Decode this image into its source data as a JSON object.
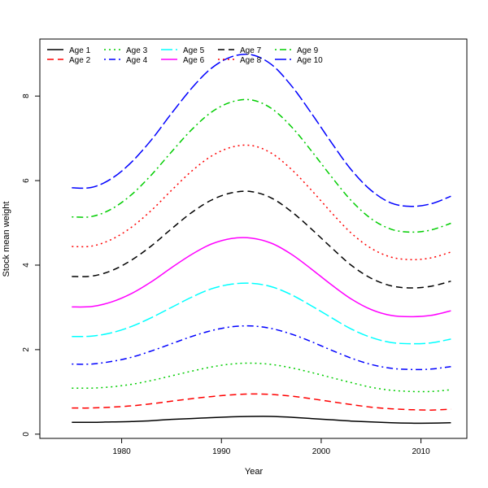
{
  "chart_data": {
    "type": "line",
    "title": "",
    "xlabel": "Year",
    "ylabel": "Stock mean weight",
    "xlim": [
      1971.8,
      2014.6
    ],
    "ylim": [
      -0.1,
      9.35
    ],
    "xticks": [
      1980,
      1990,
      2000,
      2010
    ],
    "yticks": [
      0,
      2,
      4,
      6,
      8
    ],
    "grid": false,
    "legend_position": "top-left",
    "x": [
      1975,
      1977,
      1979,
      1981,
      1983,
      1985,
      1987,
      1989,
      1991,
      1993,
      1995,
      1997,
      1999,
      2001,
      2003,
      2005,
      2007,
      2009,
      2011,
      2013
    ],
    "series": [
      {
        "name": "Age 1",
        "color": "#000000",
        "dash": "solid",
        "values": [
          0.28,
          0.28,
          0.29,
          0.3,
          0.32,
          0.35,
          0.37,
          0.39,
          0.41,
          0.42,
          0.42,
          0.4,
          0.37,
          0.34,
          0.31,
          0.29,
          0.27,
          0.26,
          0.26,
          0.27
        ]
      },
      {
        "name": "Age 2",
        "color": "#ff0000",
        "dash": "dashed",
        "values": [
          0.62,
          0.62,
          0.64,
          0.67,
          0.72,
          0.78,
          0.84,
          0.89,
          0.93,
          0.95,
          0.94,
          0.9,
          0.84,
          0.77,
          0.7,
          0.64,
          0.6,
          0.58,
          0.57,
          0.59
        ]
      },
      {
        "name": "Age 3",
        "color": "#00cd00",
        "dash": "dotted",
        "values": [
          1.09,
          1.09,
          1.12,
          1.18,
          1.27,
          1.38,
          1.49,
          1.59,
          1.66,
          1.68,
          1.65,
          1.57,
          1.46,
          1.34,
          1.22,
          1.11,
          1.04,
          1.01,
          1.01,
          1.05
        ]
      },
      {
        "name": "Age 4",
        "color": "#0000ff",
        "dash": "dotdash",
        "values": [
          1.66,
          1.66,
          1.72,
          1.82,
          1.97,
          2.14,
          2.31,
          2.45,
          2.54,
          2.56,
          2.5,
          2.37,
          2.19,
          1.99,
          1.8,
          1.65,
          1.56,
          1.53,
          1.54,
          1.6
        ]
      },
      {
        "name": "Age 5",
        "color": "#00ffff",
        "dash": "longdash",
        "values": [
          2.31,
          2.32,
          2.4,
          2.55,
          2.76,
          3.0,
          3.24,
          3.44,
          3.55,
          3.57,
          3.49,
          3.3,
          3.04,
          2.76,
          2.49,
          2.29,
          2.17,
          2.14,
          2.16,
          2.25
        ]
      },
      {
        "name": "Age 6",
        "color": "#ff00ff",
        "dash": "solid",
        "values": [
          3.01,
          3.02,
          3.13,
          3.33,
          3.61,
          3.94,
          4.25,
          4.5,
          4.63,
          4.64,
          4.52,
          4.26,
          3.91,
          3.54,
          3.2,
          2.95,
          2.81,
          2.78,
          2.81,
          2.92
        ]
      },
      {
        "name": "Age 7",
        "color": "#000000",
        "dash": "dashed",
        "values": [
          3.73,
          3.74,
          3.87,
          4.12,
          4.46,
          4.86,
          5.24,
          5.54,
          5.71,
          5.74,
          5.59,
          5.27,
          4.86,
          4.42,
          4.0,
          3.69,
          3.51,
          3.46,
          3.5,
          3.62
        ]
      },
      {
        "name": "Age 8",
        "color": "#ff0000",
        "dash": "dotted",
        "values": [
          4.44,
          4.45,
          4.61,
          4.9,
          5.3,
          5.77,
          6.22,
          6.58,
          6.79,
          6.83,
          6.65,
          6.27,
          5.78,
          5.25,
          4.76,
          4.4,
          4.19,
          4.13,
          4.17,
          4.31
        ]
      },
      {
        "name": "Age 9",
        "color": "#00cd00",
        "dash": "dotdash",
        "values": [
          5.14,
          5.15,
          5.33,
          5.67,
          6.14,
          6.68,
          7.2,
          7.62,
          7.86,
          7.91,
          7.71,
          7.28,
          6.71,
          6.1,
          5.53,
          5.1,
          4.85,
          4.78,
          4.83,
          4.99
        ]
      },
      {
        "name": "Age 10",
        "color": "#0000ff",
        "dash": "longdash",
        "values": [
          5.83,
          5.84,
          6.05,
          6.44,
          6.97,
          7.59,
          8.18,
          8.66,
          8.93,
          8.98,
          8.75,
          8.25,
          7.6,
          6.91,
          6.26,
          5.77,
          5.47,
          5.39,
          5.45,
          5.63
        ]
      }
    ]
  }
}
